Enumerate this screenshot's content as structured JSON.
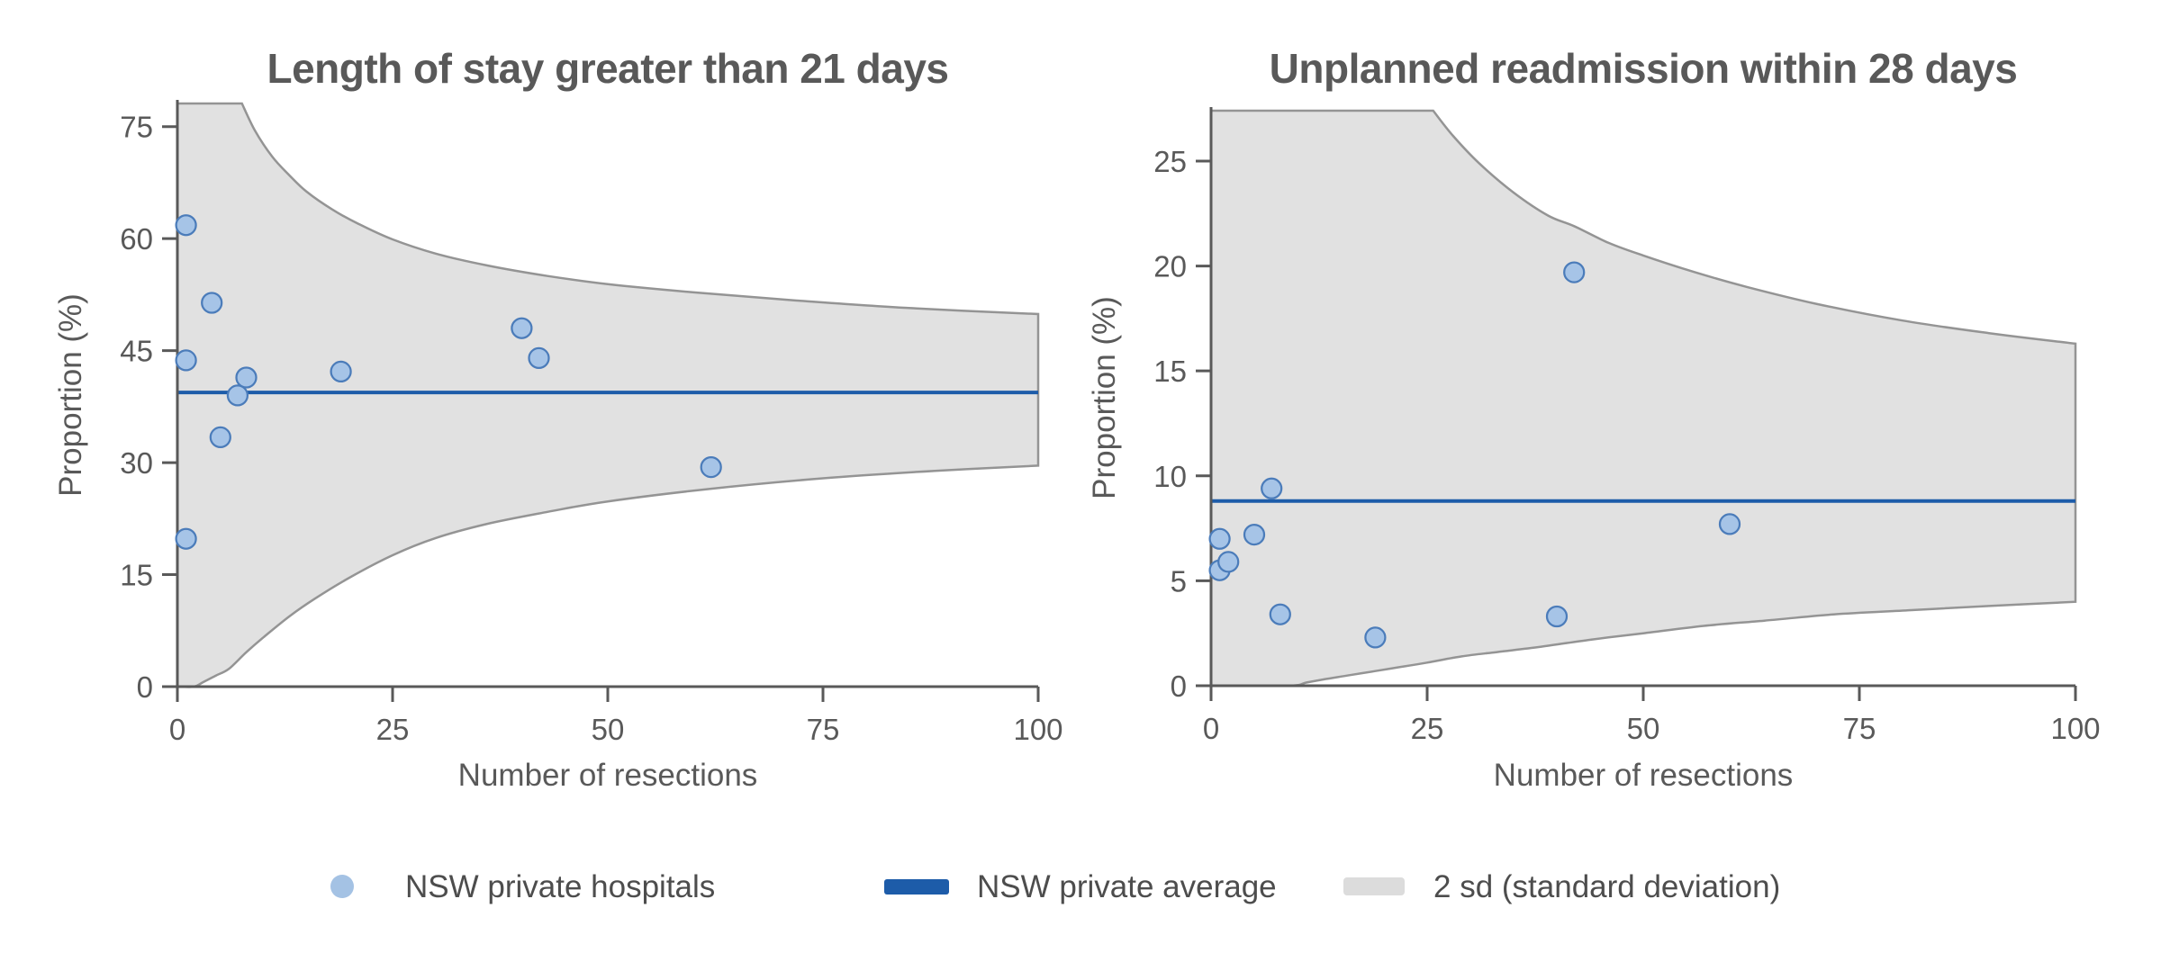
{
  "figure": {
    "background": "#ffffff",
    "colors": {
      "marker_fill": "#a6c4e7",
      "marker_stroke": "#4b7cba",
      "average_line": "#1d5ca9",
      "band_fill": "#e1e1e1",
      "band_edge": "#949494",
      "axis": "#595959",
      "title_text": "#595959",
      "tick_text": "#595959",
      "legend_text": "#4d4d4d",
      "legend_dot": "#a4c2e4",
      "legend_band_swatch": "#dcdcdc"
    }
  },
  "legend": {
    "position": "bottom",
    "items": [
      {
        "swatch": "dot",
        "label": "NSW private hospitals"
      },
      {
        "swatch": "line",
        "label": "NSW private average"
      },
      {
        "swatch": "band",
        "label": "2 sd (standard deviation)"
      }
    ]
  },
  "chart_data": [
    {
      "type": "scatter",
      "subtype": "funnel-plot",
      "title": "Length of stay greater than 21 days",
      "xlabel": "Number of resections",
      "ylabel": "Proportion (%)",
      "xlim": [
        0,
        100
      ],
      "ylim": [
        0,
        78.1
      ],
      "xticks": [
        0,
        25,
        50,
        75,
        100
      ],
      "yticks": [
        0,
        15,
        30,
        45,
        60,
        75
      ],
      "grid": false,
      "average_pct": 39.4,
      "points_xy": [
        [
          1,
          61.8
        ],
        [
          1,
          43.7
        ],
        [
          4,
          51.4
        ],
        [
          5,
          33.4
        ],
        [
          8,
          41.4
        ],
        [
          7,
          39.0
        ],
        [
          19,
          42.2
        ],
        [
          40,
          48.0
        ],
        [
          42,
          44.0
        ],
        [
          62,
          29.4
        ],
        [
          1,
          19.8
        ]
      ],
      "band_upper_xy": [
        [
          7.5,
          78.1
        ],
        [
          9,
          74.5
        ],
        [
          11,
          71.0
        ],
        [
          13,
          68.5
        ],
        [
          15,
          66.3
        ],
        [
          18,
          63.9
        ],
        [
          21,
          62.0
        ],
        [
          25,
          59.9
        ],
        [
          30,
          58.0
        ],
        [
          36,
          56.4
        ],
        [
          43,
          55.0
        ],
        [
          50,
          53.9
        ],
        [
          60,
          52.8
        ],
        [
          72,
          51.7
        ],
        [
          85,
          50.7
        ],
        [
          100,
          49.9
        ]
      ],
      "band_lower_xy": [
        [
          0,
          0
        ],
        [
          1.9,
          0
        ],
        [
          3,
          0.6
        ],
        [
          4.5,
          1.5
        ],
        [
          6,
          2.4
        ],
        [
          8,
          4.6
        ],
        [
          10,
          6.6
        ],
        [
          13,
          9.4
        ],
        [
          16,
          11.8
        ],
        [
          20,
          14.6
        ],
        [
          25,
          17.6
        ],
        [
          30,
          19.9
        ],
        [
          36,
          21.8
        ],
        [
          43,
          23.4
        ],
        [
          50,
          24.8
        ],
        [
          62,
          26.5
        ],
        [
          75,
          27.9
        ],
        [
          88,
          28.9
        ],
        [
          100,
          29.6
        ]
      ]
    },
    {
      "type": "scatter",
      "subtype": "funnel-plot",
      "title": "Unplanned readmission within 28 days",
      "xlabel": "Number of resections",
      "ylabel": "Proportion (%)",
      "xlim": [
        0,
        100
      ],
      "ylim": [
        0,
        27.4
      ],
      "xticks": [
        0,
        25,
        50,
        75,
        100
      ],
      "yticks": [
        0,
        5,
        10,
        15,
        20,
        25
      ],
      "grid": false,
      "average_pct": 8.8,
      "points_xy": [
        [
          7,
          9.4
        ],
        [
          5,
          7.2
        ],
        [
          1,
          7.0
        ],
        [
          1,
          5.5
        ],
        [
          2,
          5.9
        ],
        [
          8,
          3.4
        ],
        [
          19,
          2.3
        ],
        [
          40,
          3.3
        ],
        [
          42,
          19.7
        ],
        [
          60,
          7.7
        ]
      ],
      "band_upper_xy": [
        [
          25.7,
          27.4
        ],
        [
          28,
          26.2
        ],
        [
          31,
          24.9
        ],
        [
          35,
          23.5
        ],
        [
          39,
          22.4
        ],
        [
          42,
          21.9
        ],
        [
          46,
          21.1
        ],
        [
          50,
          20.5
        ],
        [
          56,
          19.7
        ],
        [
          62,
          19.0
        ],
        [
          70,
          18.2
        ],
        [
          80,
          17.4
        ],
        [
          90,
          16.8
        ],
        [
          100,
          16.3
        ]
      ],
      "band_lower_xy": [
        [
          0,
          0
        ],
        [
          9,
          0
        ],
        [
          11,
          0.15
        ],
        [
          13,
          0.3
        ],
        [
          16,
          0.5
        ],
        [
          19,
          0.7
        ],
        [
          22,
          0.9
        ],
        [
          25,
          1.1
        ],
        [
          29,
          1.4
        ],
        [
          33,
          1.6
        ],
        [
          38,
          1.85
        ],
        [
          44,
          2.2
        ],
        [
          50,
          2.5
        ],
        [
          57,
          2.85
        ],
        [
          64,
          3.1
        ],
        [
          72,
          3.4
        ],
        [
          81,
          3.6
        ],
        [
          90,
          3.8
        ],
        [
          100,
          4.0
        ]
      ]
    }
  ]
}
